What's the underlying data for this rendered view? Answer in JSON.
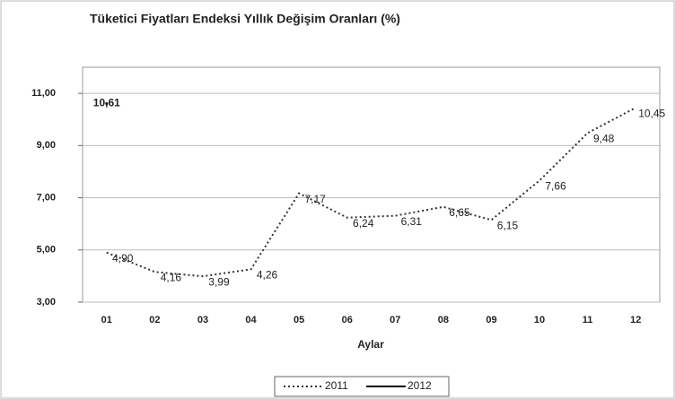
{
  "chart_data": {
    "type": "line",
    "title": "Tüketici Fiyatları Endeksi Yıllık Değişim Oranları (%)",
    "x_label": "Aylar",
    "categories": [
      "01",
      "02",
      "03",
      "04",
      "05",
      "06",
      "07",
      "08",
      "09",
      "10",
      "11",
      "12"
    ],
    "series": [
      {
        "name": "2011",
        "color": "#333333",
        "style": "dotted",
        "values": [
          4.9,
          4.16,
          3.99,
          4.26,
          7.17,
          6.24,
          6.31,
          6.65,
          6.15,
          7.66,
          9.48,
          10.45
        ],
        "value_labels": [
          "4,90",
          "4,16",
          "3,99",
          "4,26",
          "7,17",
          "6,24",
          "6,31",
          "6,65",
          "6,15",
          "7,66",
          "9,48",
          "10,45"
        ]
      },
      {
        "name": "2012",
        "color": "#000000",
        "style": "solid",
        "values": [
          10.61,
          null,
          null,
          null,
          null,
          null,
          null,
          null,
          null,
          null,
          null,
          null
        ],
        "value_labels": [
          "10,61",
          null,
          null,
          null,
          null,
          null,
          null,
          null,
          null,
          null,
          null,
          null
        ]
      }
    ],
    "ylim": [
      3,
      12
    ],
    "yticks": [
      {
        "value": 3,
        "label": "3,00"
      },
      {
        "value": 5,
        "label": "5,00"
      },
      {
        "value": 7,
        "label": "7,00"
      },
      {
        "value": 9,
        "label": "9,00"
      },
      {
        "value": 11,
        "label": "11,00"
      }
    ],
    "grid": true,
    "legend": "bottom"
  }
}
